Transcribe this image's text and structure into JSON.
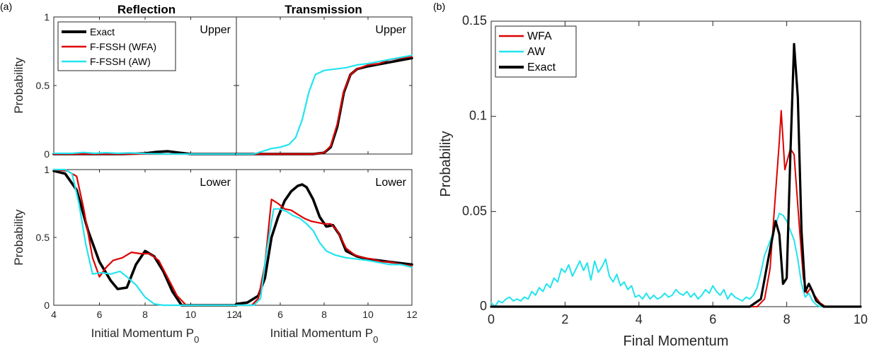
{
  "figure": {
    "panel_a_label": "(a)",
    "panel_b_label": "(b)",
    "col_title_left": "Reflection",
    "col_title_right": "Transmission"
  },
  "chart_data": [
    {
      "id": "a-ref-upper",
      "type": "line",
      "corner_label": "Upper",
      "ylabel": "Probability",
      "xlim": [
        4,
        12
      ],
      "ylim": [
        0,
        1
      ],
      "yticks": [
        "0",
        "0.5",
        "1"
      ],
      "legend": {
        "position": "top-left",
        "entries": [
          "Exact",
          "F-FSSH (WFA)",
          "F-FSSH (AW)"
        ]
      },
      "series": [
        {
          "name": "Exact",
          "color": "#000000",
          "x": [
            4,
            5,
            6,
            7,
            8,
            8.5,
            9,
            9.5,
            10,
            11,
            12
          ],
          "y": [
            0,
            0,
            0,
            0,
            0.005,
            0.015,
            0.02,
            0.01,
            0,
            0,
            0
          ]
        },
        {
          "name": "F-FSSH (WFA)",
          "color": "#dd0000",
          "x": [
            4,
            5,
            6,
            7,
            8,
            9,
            10,
            11,
            12
          ],
          "y": [
            0,
            0,
            0,
            0,
            0,
            0,
            0,
            0,
            0
          ]
        },
        {
          "name": "F-FSSH (AW)",
          "color": "#22e4ee",
          "x": [
            4,
            4.8,
            5.3,
            5.8,
            6.3,
            6.8,
            7.3,
            8,
            9,
            10,
            11,
            12
          ],
          "y": [
            0.005,
            0.005,
            0.012,
            0.005,
            0.01,
            0.005,
            0.008,
            0.003,
            0,
            0,
            0,
            0
          ]
        }
      ]
    },
    {
      "id": "a-tra-upper",
      "type": "line",
      "corner_label": "Upper",
      "ylabel": "",
      "xlim": [
        4,
        12
      ],
      "ylim": [
        0,
        1
      ],
      "yticks": [
        "",
        "",
        ""
      ],
      "series": [
        {
          "name": "Exact",
          "color": "#000000",
          "x": [
            4,
            7,
            7.5,
            8,
            8.3,
            8.6,
            8.9,
            9.2,
            9.5,
            10,
            11,
            12
          ],
          "y": [
            0,
            0,
            0,
            0.01,
            0.05,
            0.2,
            0.45,
            0.58,
            0.62,
            0.64,
            0.67,
            0.7
          ]
        },
        {
          "name": "F-FSSH (WFA)",
          "color": "#dd0000",
          "x": [
            4,
            7,
            7.5,
            8,
            8.3,
            8.6,
            8.9,
            9.2,
            9.5,
            10,
            10.5,
            11,
            11.5,
            12
          ],
          "y": [
            0,
            0,
            0,
            0.01,
            0.06,
            0.22,
            0.46,
            0.58,
            0.62,
            0.65,
            0.66,
            0.69,
            0.7,
            0.71
          ]
        },
        {
          "name": "F-FSSH (AW)",
          "color": "#22e4ee",
          "x": [
            4,
            4.8,
            5.2,
            5.6,
            6,
            6.4,
            6.7,
            7,
            7.3,
            7.6,
            8,
            8.5,
            9,
            9.5,
            10,
            11,
            12
          ],
          "y": [
            0,
            0,
            0.02,
            0.04,
            0.05,
            0.07,
            0.12,
            0.25,
            0.45,
            0.58,
            0.61,
            0.62,
            0.63,
            0.65,
            0.66,
            0.69,
            0.72
          ]
        }
      ]
    },
    {
      "id": "a-ref-lower",
      "type": "line",
      "corner_label": "Lower",
      "ylabel": "Probability",
      "xlabel": "Initial Momentum P",
      "xlabel_sub": "0",
      "xlim": [
        4,
        12
      ],
      "ylim": [
        0,
        1
      ],
      "xticks": [
        "4",
        "6",
        "8",
        "10",
        "12"
      ],
      "yticks": [
        "0",
        "0.5",
        "1"
      ],
      "series": [
        {
          "name": "Exact",
          "color": "#000000",
          "x": [
            4,
            4.5,
            5,
            5.5,
            6,
            6.5,
            6.8,
            7.2,
            7.6,
            8,
            8.4,
            8.8,
            9.2,
            9.6,
            10,
            11,
            12
          ],
          "y": [
            0.99,
            0.97,
            0.85,
            0.55,
            0.32,
            0.18,
            0.12,
            0.13,
            0.3,
            0.4,
            0.36,
            0.25,
            0.1,
            0,
            0,
            0,
            0
          ]
        },
        {
          "name": "F-FSSH (WFA)",
          "color": "#dd0000",
          "x": [
            4,
            4.6,
            5,
            5.3,
            5.7,
            6,
            6.3,
            6.6,
            7,
            7.4,
            7.8,
            8.2,
            8.6,
            9,
            9.4,
            9.8,
            10,
            12
          ],
          "y": [
            1,
            0.99,
            0.95,
            0.72,
            0.35,
            0.21,
            0.28,
            0.33,
            0.35,
            0.39,
            0.38,
            0.38,
            0.33,
            0.2,
            0.07,
            0,
            0,
            0
          ]
        },
        {
          "name": "F-FSSH (AW)",
          "color": "#22e4ee",
          "x": [
            4,
            4.5,
            4.8,
            5.1,
            5.4,
            5.7,
            6.1,
            6.5,
            6.9,
            7.2,
            7.6,
            8,
            8.4,
            8.8,
            10,
            12
          ],
          "y": [
            1,
            1,
            0.97,
            0.75,
            0.45,
            0.23,
            0.24,
            0.23,
            0.25,
            0.21,
            0.15,
            0.06,
            0.01,
            0,
            0,
            0
          ]
        }
      ]
    },
    {
      "id": "a-tra-lower",
      "type": "line",
      "corner_label": "Lower",
      "ylabel": "",
      "xlabel": "Initial Momentum P",
      "xlabel_sub": "0",
      "xlim": [
        4,
        12
      ],
      "ylim": [
        0,
        1
      ],
      "xticks": [
        "4",
        "6",
        "8",
        "10",
        "12"
      ],
      "yticks": [
        "",
        "",
        ""
      ],
      "series": [
        {
          "name": "Exact",
          "color": "#000000",
          "x": [
            4,
            4.5,
            5,
            5.3,
            5.6,
            5.9,
            6.2,
            6.5,
            6.8,
            7,
            7.2,
            7.5,
            7.8,
            8.1,
            8.4,
            8.7,
            9,
            9.5,
            10,
            11,
            12
          ],
          "y": [
            0.01,
            0.02,
            0.07,
            0.2,
            0.5,
            0.65,
            0.77,
            0.84,
            0.88,
            0.89,
            0.87,
            0.78,
            0.65,
            0.58,
            0.59,
            0.52,
            0.4,
            0.36,
            0.34,
            0.32,
            0.3
          ]
        },
        {
          "name": "F-FSSH (WFA)",
          "color": "#dd0000",
          "x": [
            4,
            4.7,
            5,
            5.3,
            5.6,
            5.9,
            6.2,
            6.5,
            6.8,
            7.1,
            7.4,
            7.7,
            8,
            8.3,
            8.6,
            9,
            9.4,
            9.8,
            10.2,
            10.6,
            11,
            11.5,
            12
          ],
          "y": [
            0,
            0,
            0.05,
            0.3,
            0.78,
            0.75,
            0.71,
            0.7,
            0.67,
            0.64,
            0.62,
            0.61,
            0.6,
            0.6,
            0.55,
            0.42,
            0.37,
            0.35,
            0.34,
            0.32,
            0.32,
            0.3,
            0.29
          ]
        },
        {
          "name": "F-FSSH (AW)",
          "color": "#22e4ee",
          "x": [
            4,
            4.8,
            5.1,
            5.4,
            5.7,
            6,
            6.3,
            6.6,
            6.9,
            7.2,
            7.5,
            7.8,
            8.1,
            8.5,
            9,
            9.5,
            10,
            11,
            11.5,
            12
          ],
          "y": [
            0,
            0,
            0.05,
            0.42,
            0.71,
            0.71,
            0.69,
            0.66,
            0.64,
            0.6,
            0.55,
            0.46,
            0.4,
            0.37,
            0.35,
            0.34,
            0.33,
            0.3,
            0.3,
            0.28
          ]
        }
      ]
    },
    {
      "id": "b-final",
      "type": "line",
      "ylabel": "Probability",
      "xlabel": "Final Momentum",
      "xlim": [
        0,
        10
      ],
      "ylim": [
        0,
        0.15
      ],
      "xticks": [
        "0",
        "2",
        "4",
        "6",
        "8",
        "10"
      ],
      "yticks": [
        "0",
        "0.05",
        "0.1",
        "0.15"
      ],
      "yticks_values": [
        0,
        0.05,
        0.1,
        0.15
      ],
      "legend": {
        "position": "top-left",
        "entries": [
          "WFA",
          "AW",
          "Exact"
        ]
      },
      "series": [
        {
          "name": "WFA",
          "color": "#dd0000",
          "x": [
            0,
            6.8,
            7.2,
            7.4,
            7.55,
            7.7,
            7.8,
            7.85,
            7.95,
            8.1,
            8.2,
            8.35,
            8.45,
            8.55,
            8.65,
            8.75,
            8.9,
            9.05,
            10
          ],
          "y": [
            0,
            0,
            0,
            0.004,
            0.02,
            0.06,
            0.087,
            0.103,
            0.072,
            0.083,
            0.08,
            0.04,
            0.015,
            0.007,
            0.01,
            0.006,
            0.002,
            0,
            0
          ]
        },
        {
          "name": "AW",
          "color": "#22e4ee",
          "x": [
            0,
            0.1,
            0.2,
            0.3,
            0.4,
            0.5,
            0.6,
            0.7,
            0.8,
            0.9,
            1,
            1.1,
            1.2,
            1.3,
            1.4,
            1.5,
            1.6,
            1.7,
            1.8,
            1.9,
            2,
            2.1,
            2.2,
            2.3,
            2.4,
            2.5,
            2.6,
            2.7,
            2.8,
            2.9,
            3,
            3.1,
            3.2,
            3.3,
            3.4,
            3.5,
            3.6,
            3.7,
            3.8,
            3.9,
            4,
            4.1,
            4.2,
            4.3,
            4.4,
            4.5,
            4.6,
            4.7,
            4.8,
            4.9,
            5,
            5.1,
            5.2,
            5.3,
            5.4,
            5.5,
            5.6,
            5.7,
            5.8,
            5.9,
            6,
            6.1,
            6.2,
            6.3,
            6.4,
            6.5,
            6.6,
            6.7,
            6.8,
            6.9,
            7,
            7.1,
            7.2,
            7.3,
            7.4,
            7.5,
            7.6,
            7.7,
            7.8,
            7.9,
            8,
            8.1,
            8.2,
            8.3,
            8.4,
            8.5,
            8.6,
            8.7,
            8.8,
            8.9,
            9,
            10
          ],
          "y": [
            0.002,
            0,
            0.003,
            0.002,
            0.004,
            0.005,
            0.003,
            0.004,
            0.003,
            0.005,
            0.004,
            0.008,
            0.006,
            0.01,
            0.008,
            0.012,
            0.01,
            0.015,
            0.013,
            0.02,
            0.018,
            0.022,
            0.016,
            0.02,
            0.024,
            0.019,
            0.023,
            0.014,
            0.024,
            0.018,
            0.021,
            0.025,
            0.016,
            0.013,
            0.017,
            0.011,
            0.013,
            0.009,
            0.011,
            0.005,
            0.006,
            0.004,
            0.007,
            0.004,
            0.006,
            0.004,
            0.005,
            0.007,
            0.005,
            0.006,
            0.009,
            0.007,
            0.006,
            0.008,
            0.005,
            0.007,
            0.004,
            0.006,
            0.009,
            0.007,
            0.011,
            0.008,
            0.006,
            0.009,
            0.004,
            0.007,
            0.005,
            0.004,
            0.003,
            0.005,
            0.004,
            0.006,
            0.01,
            0.018,
            0.027,
            0.032,
            0.037,
            0.043,
            0.049,
            0.048,
            0.045,
            0.04,
            0.035,
            0.025,
            0.012,
            0.005,
            0.007,
            0.003,
            0.001,
            0,
            0,
            0
          ]
        },
        {
          "name": "Exact",
          "color": "#000000",
          "x": [
            0,
            7,
            7.3,
            7.5,
            7.7,
            7.8,
            7.9,
            8,
            8.1,
            8.2,
            8.3,
            8.4,
            8.5,
            8.6,
            8.7,
            8.8,
            9,
            10
          ],
          "y": [
            0,
            0,
            0.004,
            0.025,
            0.045,
            0.038,
            0.012,
            0.015,
            0.08,
            0.138,
            0.11,
            0.04,
            0.008,
            0.012,
            0.008,
            0.003,
            0,
            0
          ]
        }
      ]
    }
  ]
}
